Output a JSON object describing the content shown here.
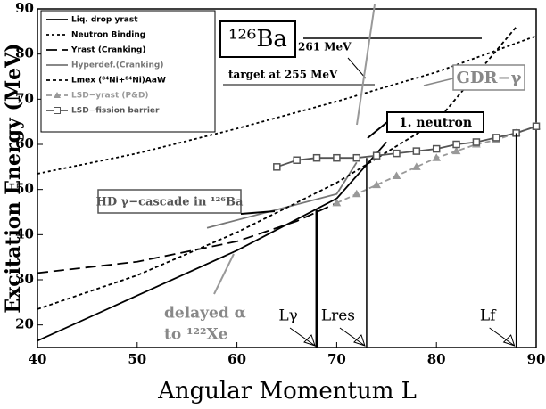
{
  "chart_data": {
    "type": "line",
    "xlabel": "Angular Momentum L",
    "ylabel": "Excitation Energy (MeV)",
    "xlim": [
      40,
      90
    ],
    "xticks": [
      40,
      50,
      60,
      70,
      80,
      90
    ],
    "ylim": [
      15,
      90
    ],
    "yticks": [
      20,
      30,
      40,
      50,
      60,
      70,
      80,
      90
    ],
    "legend": "upper left",
    "series": [
      {
        "name": "Liq. drop yrast",
        "color": "#000000",
        "dash": "",
        "marker": "none",
        "x": [
          40,
          50,
          60,
          70,
          75
        ],
        "values": [
          16.5,
          26.5,
          36.5,
          48,
          60.5
        ]
      },
      {
        "name": "Neutron Binding",
        "color": "#000000",
        "dash": "3,3",
        "marker": "none",
        "x": [
          40,
          50,
          60,
          70,
          80,
          90
        ],
        "values": [
          53.5,
          58,
          63.5,
          69.5,
          76,
          84
        ]
      },
      {
        "name": "Yrast (Cranking)",
        "color": "#000000",
        "dash": "12,6",
        "marker": "none",
        "x": [
          40,
          50,
          60,
          66,
          70
        ],
        "values": [
          31.5,
          34,
          38.5,
          43,
          47
        ]
      },
      {
        "name": "Hyperdef.(Cranking)",
        "color": "#777777",
        "dash": "",
        "marker": "none",
        "x": [
          57,
          70,
          72
        ],
        "values": [
          41.5,
          49,
          56
        ]
      },
      {
        "name": "Lmex (⁸⁴Ni+⁸⁴Ni)AaW",
        "color": "#000000",
        "dash": "4,3",
        "marker": "none",
        "x": [
          40,
          50,
          60,
          70,
          80,
          88
        ],
        "values": [
          23.5,
          31,
          40.5,
          51.5,
          65,
          86
        ]
      },
      {
        "name": "LSD−yrast (P&D)",
        "color": "#999999",
        "dash": "6,4",
        "marker": "triangle",
        "x": [
          70,
          72,
          74,
          76,
          78,
          80,
          82,
          84,
          86,
          88,
          90
        ],
        "values": [
          47,
          49,
          51,
          53,
          55,
          57,
          58.5,
          60,
          61,
          62.5,
          64
        ]
      },
      {
        "name": "LSD−fission barrier",
        "color": "#555555",
        "dash": "",
        "marker": "square",
        "x": [
          64,
          66,
          68,
          70,
          72,
          74,
          76,
          78,
          80,
          82,
          84,
          86,
          88,
          90
        ],
        "values": [
          55,
          56.5,
          57,
          57,
          57,
          57.5,
          58,
          58.5,
          59,
          60,
          60.5,
          61.5,
          62.5,
          64
        ]
      }
    ],
    "markers": [
      {
        "label": "Lγ",
        "x": 68,
        "y": 45.5
      },
      {
        "label": "Lres",
        "x": 73,
        "y": 57
      },
      {
        "label": "Lf",
        "x": 88,
        "y": 62.5
      }
    ],
    "annotations": [
      "¹²⁶Ba",
      "261 MeV",
      "target at 255 MeV",
      "GDR−γ",
      "1. neutron",
      "HD γ−cascade in ¹²⁶Ba",
      "delayed α",
      "to ¹²²Xe"
    ]
  }
}
